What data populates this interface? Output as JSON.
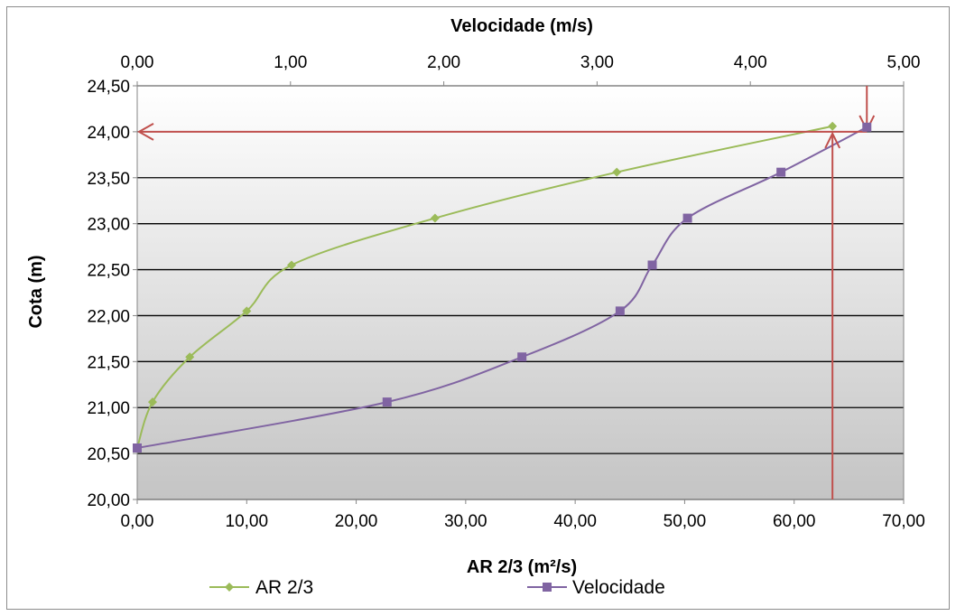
{
  "chart_data": {
    "type": "line",
    "title": "",
    "xlabel_bottom": "AR 2/3 (m²/s)",
    "xlabel_top": "Velocidade (m/s)",
    "ylabel": "Cota (m)",
    "xlim_bottom": [
      0,
      70
    ],
    "xlim_top": [
      0,
      5
    ],
    "ylim": [
      20,
      24.5
    ],
    "xticks_bottom": [
      "0,00",
      "10,00",
      "20,00",
      "30,00",
      "40,00",
      "50,00",
      "60,00",
      "70,00"
    ],
    "xticks_top": [
      "0,00",
      "1,00",
      "2,00",
      "3,00",
      "4,00",
      "5,00"
    ],
    "yticks": [
      "20,00",
      "20,50",
      "21,00",
      "21,50",
      "22,00",
      "22,50",
      "23,00",
      "23,50",
      "24,00",
      "24,50"
    ],
    "grid": "horizontal",
    "legend_position": "bottom",
    "series": [
      {
        "name": "AR 2/3",
        "axis": "bottom",
        "color": "#9bbb59",
        "marker": "diamond",
        "points": [
          [
            0.0,
            20.56
          ],
          [
            1.4,
            21.06
          ],
          [
            4.8,
            21.55
          ],
          [
            10.0,
            22.05
          ],
          [
            14.1,
            22.55
          ],
          [
            27.2,
            23.06
          ],
          [
            43.8,
            23.56
          ],
          [
            63.5,
            24.06
          ]
        ]
      },
      {
        "name": "Velocidade",
        "axis": "top",
        "color": "#8064a2",
        "marker": "square",
        "points": [
          [
            0.0,
            20.56
          ],
          [
            1.63,
            21.06
          ],
          [
            2.51,
            21.55
          ],
          [
            3.15,
            22.05
          ],
          [
            3.36,
            22.55
          ],
          [
            3.59,
            23.06
          ],
          [
            4.2,
            23.56
          ],
          [
            4.76,
            24.05
          ]
        ]
      }
    ],
    "annotations": {
      "color": "#c0504d",
      "vertical_line_bottom_x": 63.5,
      "vertical_line_top_x": 4.76,
      "horizontal_arrow_y": 24.0
    }
  }
}
